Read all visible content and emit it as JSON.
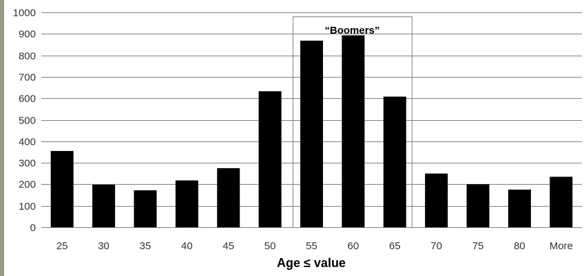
{
  "chart_data": {
    "type": "bar",
    "title": "",
    "xlabel": "Age ≤ value",
    "ylabel": "",
    "ylim": [
      0,
      1000
    ],
    "yticks": [
      0,
      100,
      200,
      300,
      400,
      500,
      600,
      700,
      800,
      900,
      1000
    ],
    "grid": true,
    "categories": [
      "25",
      "30",
      "35",
      "40",
      "45",
      "50",
      "55",
      "60",
      "65",
      "70",
      "75",
      "80",
      "More"
    ],
    "values": [
      355,
      198,
      172,
      218,
      275,
      633,
      868,
      893,
      608,
      250,
      200,
      175,
      235
    ],
    "annotation": {
      "label": "“Boomers”",
      "categories": [
        "55",
        "60",
        "65"
      ]
    },
    "colors": {
      "bar": "#000000",
      "grid": "#7f7f7f",
      "box": "#808080",
      "axis": "#808080"
    }
  }
}
